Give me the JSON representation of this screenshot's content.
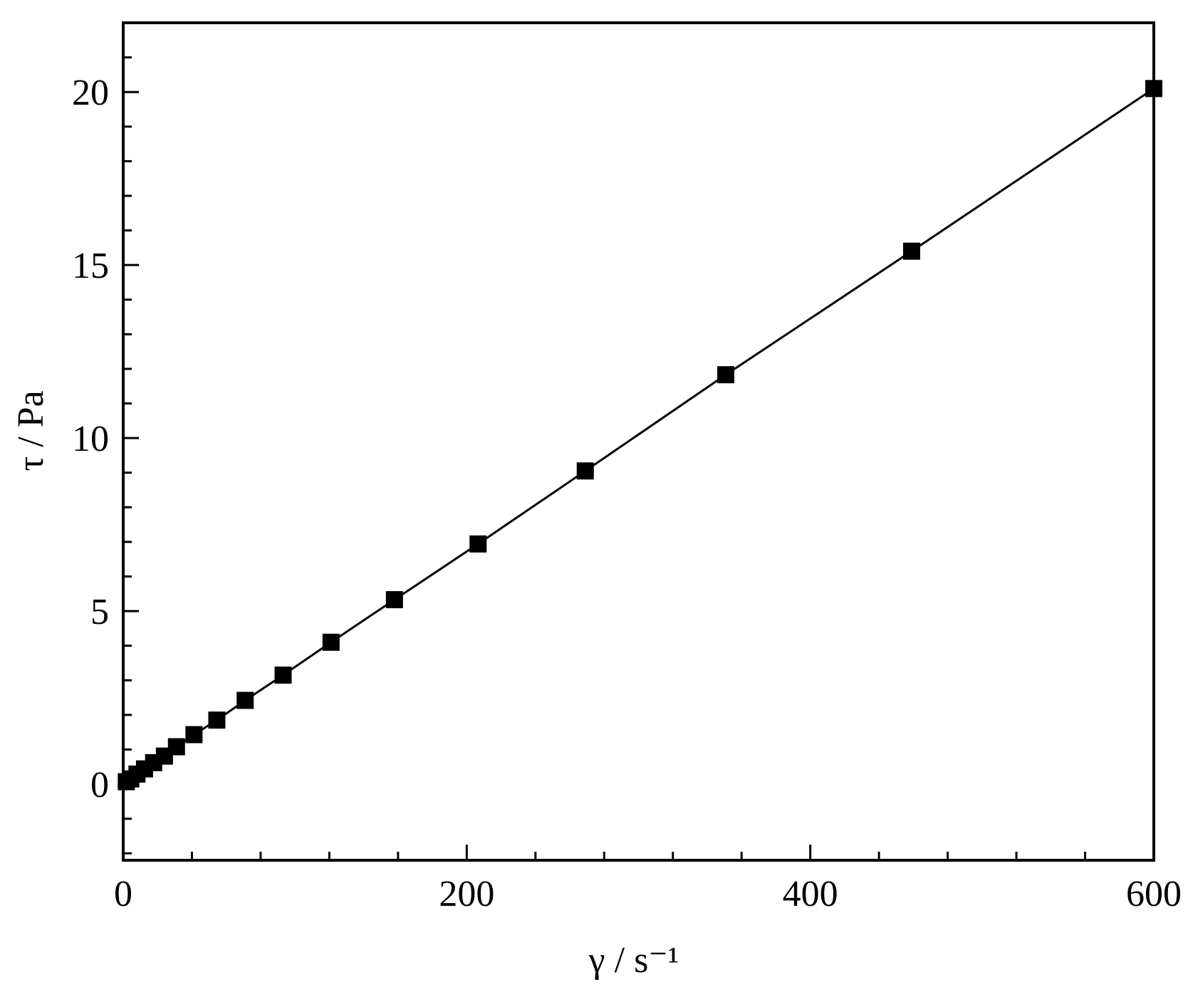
{
  "chart_data": {
    "type": "line",
    "xlabel": "γ / s⁻¹",
    "ylabel": "τ / Pa",
    "xlim": [
      0,
      600
    ],
    "ylim": [
      -2.2,
      22
    ],
    "xticks": [
      0,
      200,
      400,
      600
    ],
    "yticks": [
      0,
      5,
      10,
      15,
      20
    ],
    "xminorticks": [
      40,
      80,
      120,
      160,
      240,
      280,
      320,
      360,
      440,
      480,
      520,
      560
    ],
    "yminorticks": [
      -2,
      -1,
      1,
      2,
      3,
      4,
      6,
      7,
      8,
      9,
      11,
      12,
      13,
      14,
      16,
      17,
      18,
      19,
      21,
      22
    ],
    "series": [
      {
        "color": "#000000",
        "marker": "square",
        "x": [
          1.8,
          4.4,
          8,
          12.4,
          17.7,
          24,
          31,
          41.2,
          54.5,
          71,
          93.1,
          121,
          157.9,
          206.6,
          269,
          350.8,
          459,
          600
        ],
        "values": [
          0.07,
          0.15,
          0.29,
          0.44,
          0.62,
          0.81,
          1.08,
          1.43,
          1.85,
          2.42,
          3.15,
          4.1,
          5.33,
          6.94,
          9.05,
          11.83,
          15.4,
          20.1
        ]
      }
    ]
  }
}
